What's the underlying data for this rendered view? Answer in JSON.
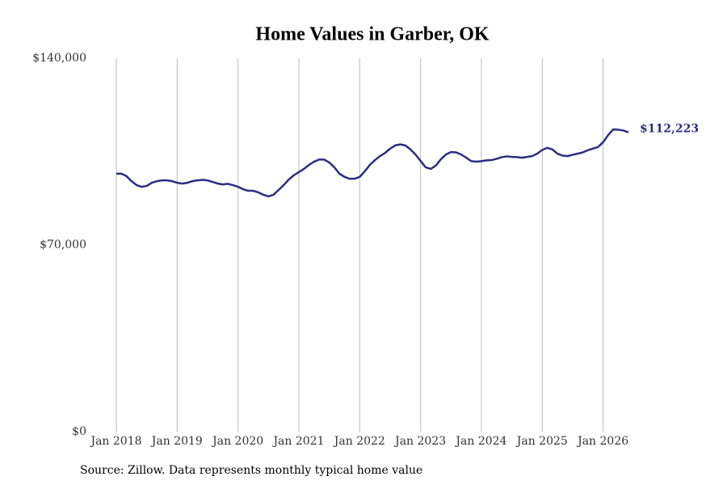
{
  "chart_data": {
    "type": "line",
    "title": "Home Values in Garber, OK",
    "note": "Source: Zillow. Data represents monthly typical home value",
    "color": "#2b2d84",
    "grid": true,
    "x": [
      "2018-01",
      "2018-02",
      "2018-03",
      "2018-04",
      "2018-05",
      "2018-06",
      "2018-07",
      "2018-08",
      "2018-09",
      "2018-10",
      "2018-11",
      "2018-12",
      "2019-01",
      "2019-02",
      "2019-03",
      "2019-04",
      "2019-05",
      "2019-06",
      "2019-07",
      "2019-08",
      "2019-09",
      "2019-10",
      "2019-11",
      "2019-12",
      "2020-01",
      "2020-02",
      "2020-03",
      "2020-04",
      "2020-05",
      "2020-06",
      "2020-07",
      "2020-08",
      "2020-09",
      "2020-10",
      "2020-11",
      "2020-12",
      "2021-01",
      "2021-02",
      "2021-03",
      "2021-04",
      "2021-05",
      "2021-06",
      "2021-07",
      "2021-08",
      "2021-09",
      "2021-10",
      "2021-11",
      "2021-12",
      "2022-01",
      "2022-02",
      "2022-03",
      "2022-04",
      "2022-05",
      "2022-06",
      "2022-07",
      "2022-08",
      "2022-09",
      "2022-10",
      "2022-11",
      "2022-12",
      "2023-01",
      "2023-02",
      "2023-03",
      "2023-04",
      "2023-05",
      "2023-06",
      "2023-07",
      "2023-08",
      "2023-09",
      "2023-10",
      "2023-11",
      "2023-12",
      "2024-01",
      "2024-02",
      "2024-03",
      "2024-04",
      "2024-05",
      "2024-06",
      "2024-07",
      "2024-08",
      "2024-09",
      "2024-10",
      "2024-11",
      "2024-12",
      "2025-01",
      "2025-02",
      "2025-03",
      "2025-04",
      "2025-05",
      "2025-06",
      "2025-07",
      "2025-08",
      "2025-09",
      "2025-10",
      "2025-11",
      "2025-12",
      "2026-01",
      "2026-02",
      "2026-03",
      "2026-04",
      "2026-05",
      "2026-06"
    ],
    "values": [
      96700,
      96700,
      95800,
      93900,
      92400,
      91800,
      92100,
      93300,
      93900,
      94200,
      94200,
      93900,
      93300,
      93000,
      93300,
      93900,
      94200,
      94400,
      94200,
      93600,
      93000,
      92700,
      92900,
      92400,
      91800,
      90900,
      90300,
      90300,
      89700,
      88800,
      88200,
      88800,
      90600,
      92400,
      94500,
      96100,
      97300,
      98500,
      100000,
      101200,
      102000,
      102000,
      100900,
      99100,
      96700,
      95500,
      94800,
      94800,
      95500,
      97600,
      100000,
      101800,
      103300,
      104500,
      106100,
      107300,
      107700,
      107300,
      105800,
      103900,
      101500,
      99100,
      98500,
      99700,
      102100,
      103900,
      104800,
      104700,
      103900,
      102700,
      101400,
      101200,
      101400,
      101700,
      101800,
      102300,
      102900,
      103200,
      103000,
      102900,
      102700,
      103000,
      103300,
      104200,
      105600,
      106400,
      105800,
      104200,
      103500,
      103300,
      103800,
      104200,
      104700,
      105500,
      106100,
      106700,
      108500,
      111200,
      113300,
      113200,
      112900,
      112223
    ],
    "value_labels": [
      null,
      null,
      null,
      null,
      null,
      null,
      null,
      null,
      null,
      null,
      null,
      null,
      null,
      null,
      null,
      null,
      null,
      null,
      null,
      null,
      null,
      null,
      null,
      null,
      null,
      null,
      null,
      null,
      null,
      null,
      null,
      null,
      null,
      null,
      null,
      null,
      null,
      null,
      null,
      null,
      null,
      null,
      null,
      null,
      null,
      null,
      null,
      null,
      null,
      null,
      null,
      null,
      null,
      null,
      null,
      null,
      null,
      null,
      null,
      null,
      null,
      null,
      null,
      null,
      null,
      null,
      null,
      null,
      null,
      null,
      null,
      null,
      null,
      null,
      null,
      null,
      null,
      null,
      null,
      null,
      null,
      null,
      null,
      null,
      null,
      null,
      null,
      null,
      null,
      null,
      null,
      null,
      null,
      null,
      null,
      null,
      null,
      null,
      null,
      null,
      null,
      "$112,223"
    ],
    "ylim": [
      0,
      140000
    ],
    "yticks": [
      {
        "value": 0,
        "label": "$0"
      },
      {
        "value": 70000,
        "label": "$70,000"
      },
      {
        "value": 140000,
        "label": "$140,000"
      }
    ],
    "xticks": [
      {
        "value": "2018-01",
        "label": "Jan 2018"
      },
      {
        "value": "2019-01",
        "label": "Jan 2019"
      },
      {
        "value": "2020-01",
        "label": "Jan 2020"
      },
      {
        "value": "2021-01",
        "label": "Jan 2021"
      },
      {
        "value": "2022-01",
        "label": "Jan 2022"
      },
      {
        "value": "2023-01",
        "label": "Jan 2023"
      },
      {
        "value": "2024-01",
        "label": "Jan 2024"
      },
      {
        "value": "2025-01",
        "label": "Jan 2025"
      },
      {
        "value": "2026-01",
        "label": "Jan 2026"
      }
    ]
  }
}
